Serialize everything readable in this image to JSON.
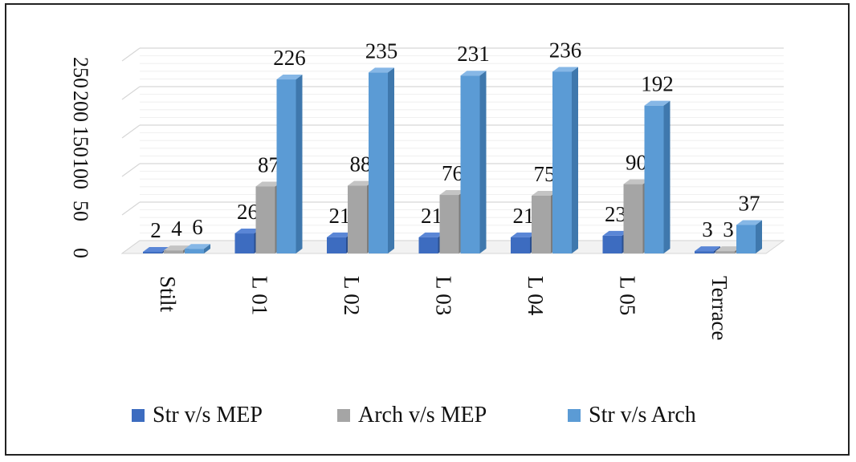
{
  "chart_data": {
    "type": "bar",
    "categories": [
      "Stilt",
      "L 01",
      "L 02",
      "L 03",
      "L 04",
      "L 05",
      "Terrace"
    ],
    "series": [
      {
        "name": "Str v/s MEP",
        "values": [
          2,
          26,
          21,
          21,
          21,
          23,
          3
        ]
      },
      {
        "name": "Arch v/s MEP",
        "values": [
          4,
          87,
          88,
          76,
          75,
          90,
          3
        ]
      },
      {
        "name": "Str v/s Arch",
        "values": [
          6,
          226,
          235,
          231,
          236,
          192,
          37
        ]
      }
    ],
    "y_ticks": [
      "0",
      "50",
      "100",
      "150",
      "200",
      "250"
    ],
    "ylim": [
      0,
      250
    ],
    "grid": true,
    "legend": "bottom",
    "colors": {
      "series": [
        "#3d6cc0",
        "#a5a5a5",
        "#5b9bd5"
      ],
      "side": [
        "#2b4f8f",
        "#7c7c7c",
        "#3f78ad"
      ],
      "top": [
        "#5a86d6",
        "#c4c4c4",
        "#86b7e6"
      ],
      "grid": "#d6d6d6"
    }
  }
}
